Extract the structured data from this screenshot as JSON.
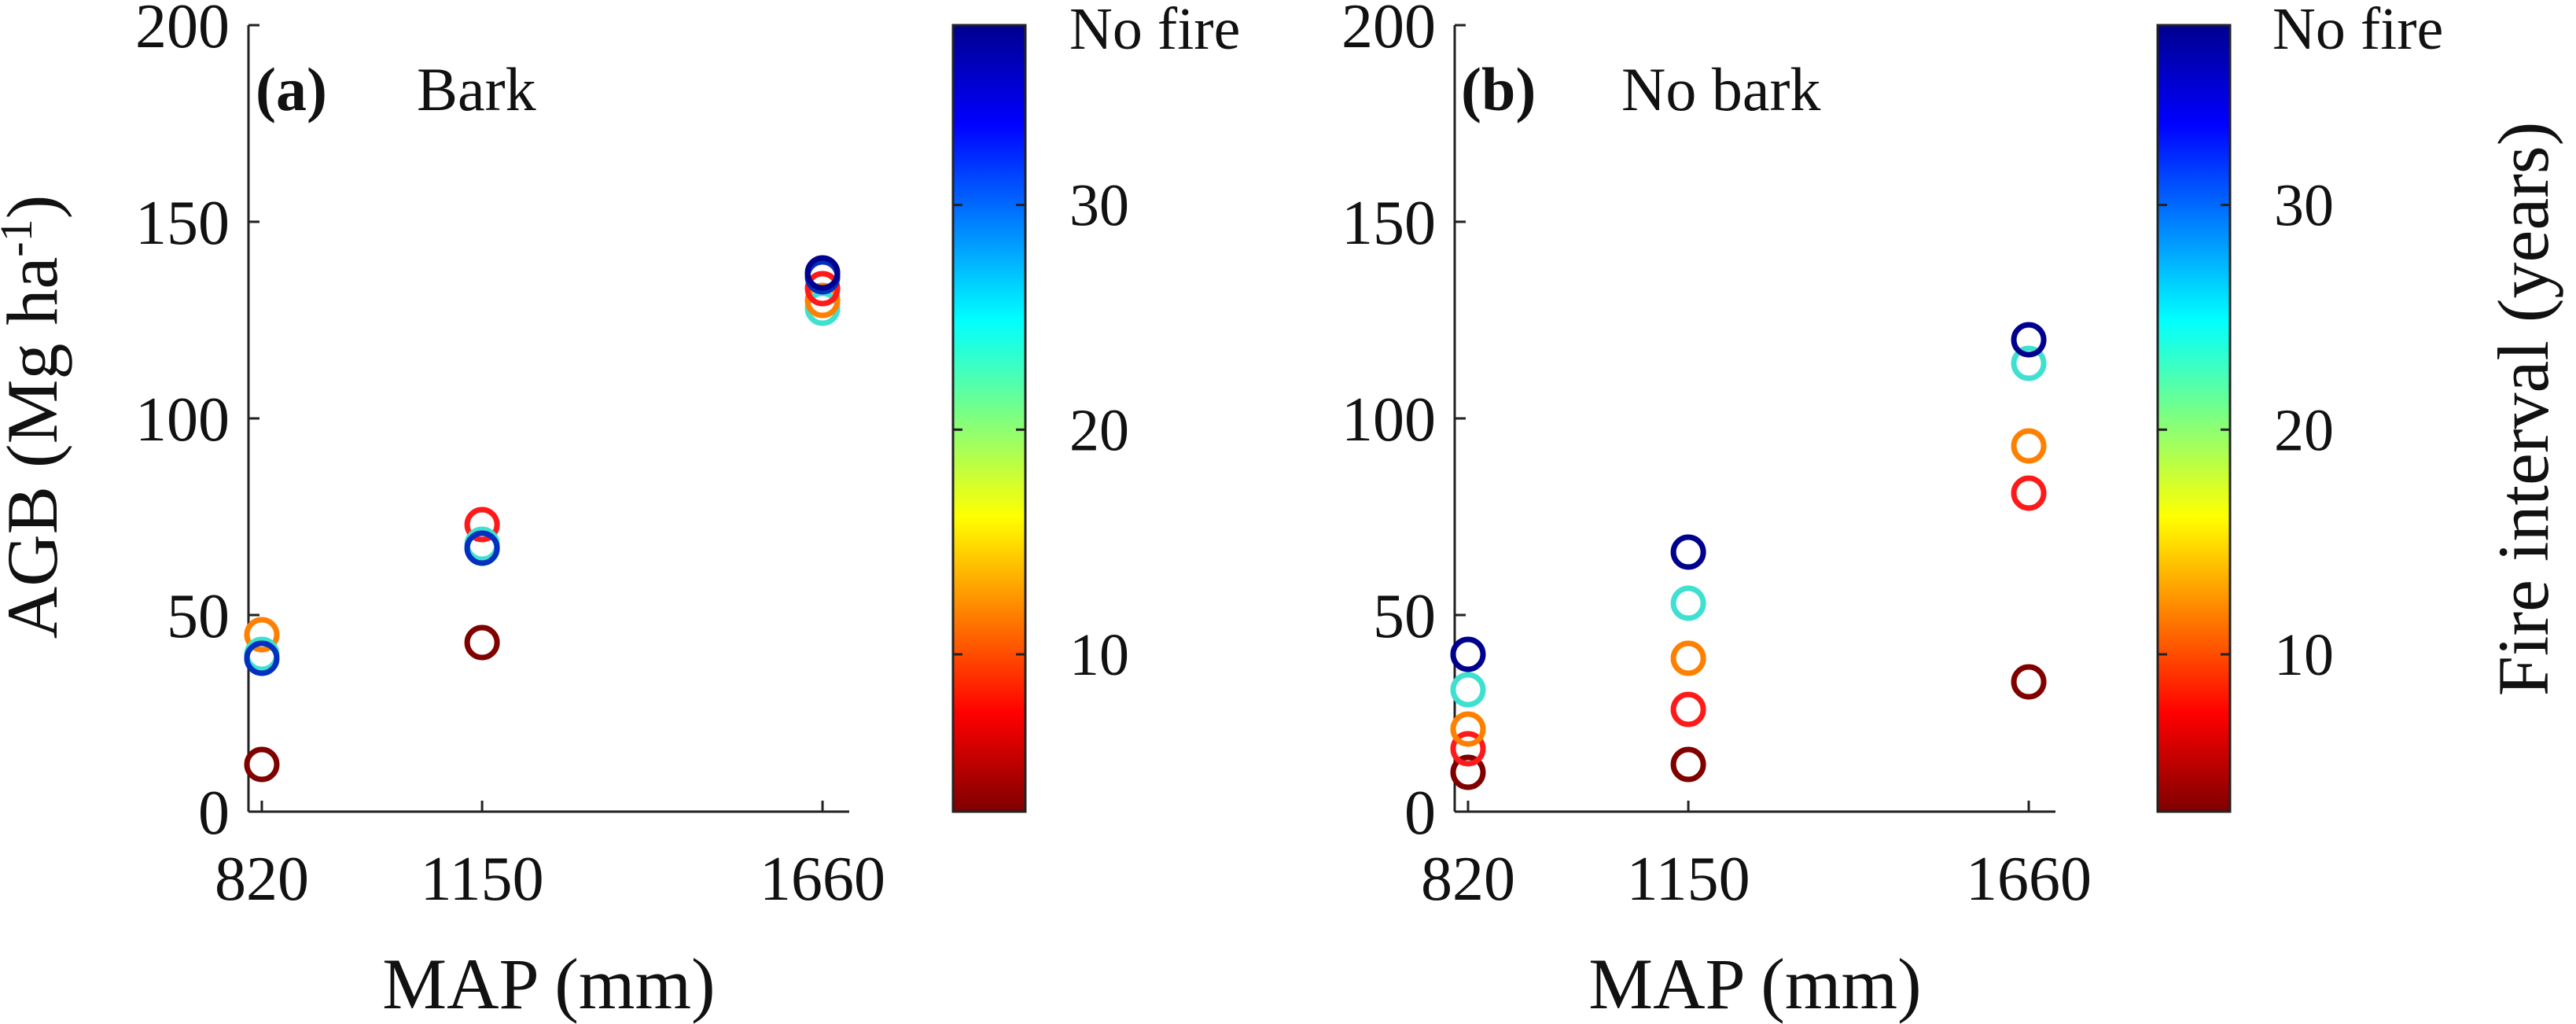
{
  "figure": {
    "ylabel_main": "AGB (Mg ha",
    "ylabel_sup": "-1",
    "ylabel_close": ")",
    "colorbar_label": "Fire interval (years)"
  },
  "colorscale": {
    "stops": [
      "#7f0000",
      "#ff0000",
      "#ff7f00",
      "#ffff00",
      "#7fff7f",
      "#00ffff",
      "#007fff",
      "#0000ff",
      "#00008f"
    ],
    "range": [
      3,
      38
    ],
    "ticks": [
      10,
      20,
      30
    ],
    "top_label": "No fire"
  },
  "chart_data": [
    {
      "type": "scatter",
      "panel_label": "(a)",
      "title": "Bark",
      "xlabel": "MAP (mm)",
      "x_categories": [
        "820",
        "1150",
        "1660"
      ],
      "xlim": [
        800,
        1700
      ],
      "ylim": [
        0,
        200
      ],
      "yticks": [
        0,
        50,
        100,
        150,
        200
      ],
      "points": [
        {
          "x": 820,
          "y": 12,
          "color": "#800000"
        },
        {
          "x": 820,
          "y": 45,
          "color": "#ff8000"
        },
        {
          "x": 820,
          "y": 40,
          "color": "#40e0d0"
        },
        {
          "x": 820,
          "y": 39,
          "color": "#0030c0"
        },
        {
          "x": 1150,
          "y": 43,
          "color": "#800000"
        },
        {
          "x": 1150,
          "y": 73,
          "color": "#ff1a1a"
        },
        {
          "x": 1150,
          "y": 68,
          "color": "#40e0d0"
        },
        {
          "x": 1150,
          "y": 67,
          "color": "#0030c0"
        },
        {
          "x": 1660,
          "y": 128,
          "color": "#40e0d0"
        },
        {
          "x": 1660,
          "y": 130,
          "color": "#ff8000"
        },
        {
          "x": 1660,
          "y": 133,
          "color": "#ff1a1a"
        },
        {
          "x": 1660,
          "y": 136,
          "color": "#0030c0"
        },
        {
          "x": 1660,
          "y": 137,
          "color": "#00008f"
        }
      ]
    },
    {
      "type": "scatter",
      "panel_label": "(b)",
      "title": "No bark",
      "xlabel": "MAP (mm)",
      "x_categories": [
        "820",
        "1150",
        "1660"
      ],
      "xlim": [
        800,
        1700
      ],
      "ylim": [
        0,
        200
      ],
      "yticks": [
        0,
        50,
        100,
        150,
        200
      ],
      "points": [
        {
          "x": 820,
          "y": 10,
          "color": "#800000"
        },
        {
          "x": 820,
          "y": 16,
          "color": "#ff1a1a"
        },
        {
          "x": 820,
          "y": 21,
          "color": "#ff8000"
        },
        {
          "x": 820,
          "y": 31,
          "color": "#40e0d0"
        },
        {
          "x": 820,
          "y": 40,
          "color": "#00008f"
        },
        {
          "x": 1150,
          "y": 12,
          "color": "#800000"
        },
        {
          "x": 1150,
          "y": 26,
          "color": "#ff1a1a"
        },
        {
          "x": 1150,
          "y": 39,
          "color": "#ff8000"
        },
        {
          "x": 1150,
          "y": 53,
          "color": "#40e0d0"
        },
        {
          "x": 1150,
          "y": 66,
          "color": "#00008f"
        },
        {
          "x": 1660,
          "y": 33,
          "color": "#800000"
        },
        {
          "x": 1660,
          "y": 81,
          "color": "#ff1a1a"
        },
        {
          "x": 1660,
          "y": 93,
          "color": "#ff8000"
        },
        {
          "x": 1660,
          "y": 114,
          "color": "#40e0d0"
        },
        {
          "x": 1660,
          "y": 120,
          "color": "#00008f"
        }
      ]
    }
  ]
}
